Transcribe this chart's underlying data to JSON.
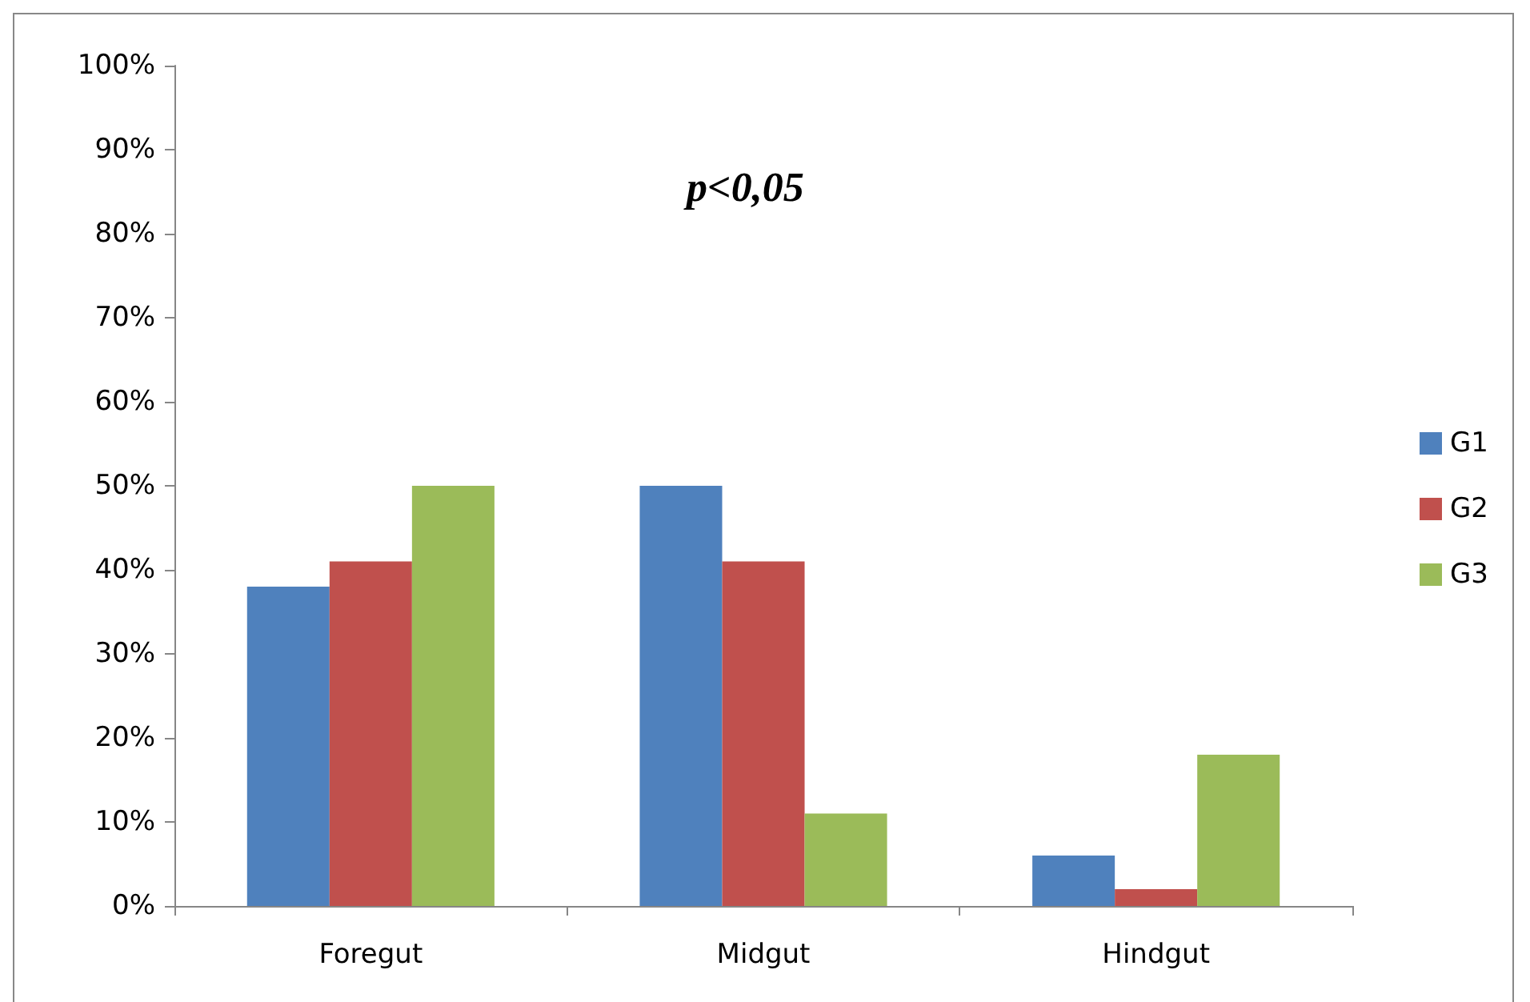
{
  "chart_data": {
    "type": "bar",
    "categories": [
      "Foregut",
      "Midgut",
      "Hindgut"
    ],
    "series": [
      {
        "name": "G1",
        "color": "#4f81bd",
        "values": [
          38,
          50,
          6
        ]
      },
      {
        "name": "G2",
        "color": "#c0504d",
        "values": [
          41,
          41,
          2
        ]
      },
      {
        "name": "G3",
        "color": "#9bbb59",
        "values": [
          50,
          11,
          18
        ]
      }
    ],
    "ylim": [
      0,
      100
    ],
    "yticks": [
      {
        "value": 0,
        "label": "0%"
      },
      {
        "value": 10,
        "label": "10%"
      },
      {
        "value": 20,
        "label": "20%"
      },
      {
        "value": 30,
        "label": "30%"
      },
      {
        "value": 40,
        "label": "40%"
      },
      {
        "value": 50,
        "label": "50%"
      },
      {
        "value": 60,
        "label": "60%"
      },
      {
        "value": 70,
        "label": "70%"
      },
      {
        "value": 80,
        "label": "80%"
      },
      {
        "value": 90,
        "label": "90%"
      },
      {
        "value": 100,
        "label": "100%"
      }
    ],
    "annotations": [
      "p<0,05"
    ],
    "grid": false,
    "legend": "right"
  }
}
